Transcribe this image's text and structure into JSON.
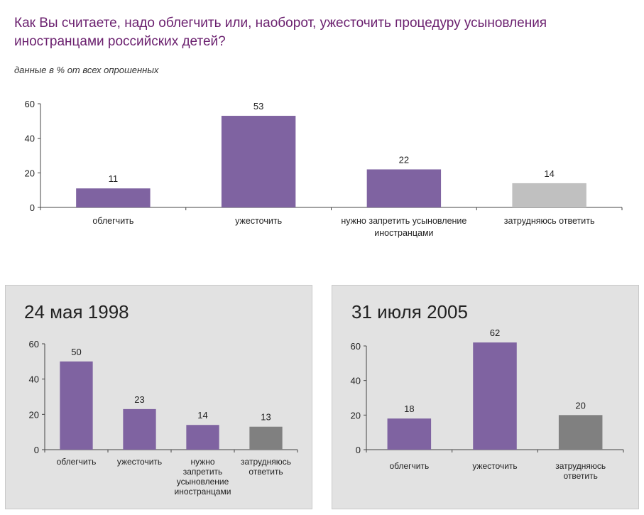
{
  "header": {
    "title": "Как Вы считаете, надо облегчить или, наоборот, ужесточить процедуру усыновления иностранцами российских детей?",
    "subtitle": "данные в % от всех опрошенных"
  },
  "colors": {
    "purple": "#7f63a1",
    "light_gray": "#c0c0c0",
    "dark_gray": "#808080",
    "title_color": "#6a1f6e",
    "panel_bg": "#e2e2e2"
  },
  "panels": {
    "left_title": "24 мая 1998",
    "right_title": "31 июля 2005"
  },
  "chart_data": [
    {
      "type": "bar",
      "categories": [
        "облегчить",
        "ужесточить",
        "нужно запретить усыновление иностранцами",
        "затрудняюсь ответить"
      ],
      "category_lines": [
        [
          "облегчить"
        ],
        [
          "ужесточить"
        ],
        [
          "нужно запретить усыновление",
          "иностранцами"
        ],
        [
          "затрудняюсь ответить"
        ]
      ],
      "values": [
        11,
        53,
        22,
        14
      ],
      "bar_colors": [
        "#7f63a1",
        "#7f63a1",
        "#7f63a1",
        "#c0c0c0"
      ],
      "ylim": [
        0,
        60
      ],
      "yticks": [
        0,
        20,
        40,
        60
      ]
    },
    {
      "type": "bar",
      "title": "24 мая 1998",
      "categories": [
        "облегчить",
        "ужесточить",
        "нужно запретить усыновление иностранцами",
        "затрудняюсь ответить"
      ],
      "category_lines": [
        [
          "облегчить"
        ],
        [
          "ужесточить"
        ],
        [
          "нужно",
          "запретить",
          "усыновление",
          "иностранцами"
        ],
        [
          "затрудняюсь",
          "ответить"
        ]
      ],
      "values": [
        50,
        23,
        14,
        13
      ],
      "bar_colors": [
        "#7f63a1",
        "#7f63a1",
        "#7f63a1",
        "#808080"
      ],
      "ylim": [
        0,
        60
      ],
      "yticks": [
        0,
        20,
        40,
        60
      ]
    },
    {
      "type": "bar",
      "title": "31 июля 2005",
      "categories": [
        "облегчить",
        "ужесточить",
        "затрудняюсь ответить"
      ],
      "category_lines": [
        [
          "облегчить"
        ],
        [
          "ужесточить"
        ],
        [
          "затрудняюсь",
          "ответить"
        ]
      ],
      "values": [
        18,
        62,
        20
      ],
      "bar_colors": [
        "#7f63a1",
        "#7f63a1",
        "#808080"
      ],
      "ylim": [
        0,
        60
      ],
      "yticks": [
        0,
        20,
        40,
        60
      ]
    }
  ]
}
